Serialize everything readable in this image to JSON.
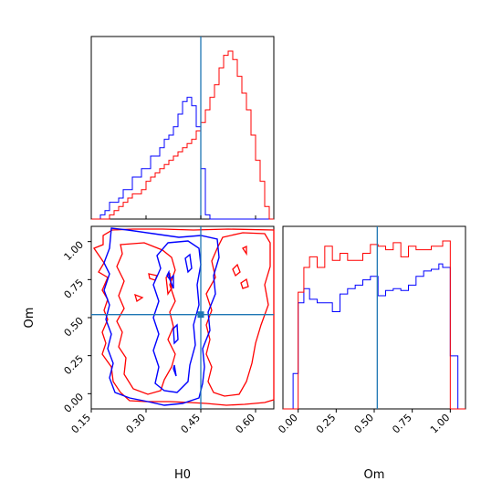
{
  "chart_data": {
    "type": "corner",
    "parameters": [
      "H0",
      "Om"
    ],
    "truth": {
      "H0": 0.45,
      "Om": 0.52
    },
    "colors": {
      "blue": "#0000ff",
      "red": "#ff0000",
      "truth": "#1f77b4"
    },
    "panels": [
      {
        "id": "hist-H0",
        "type": "histogram",
        "x_range": [
          0.15,
          0.65
        ],
        "bin_edges": [
          0.15,
          0.1625,
          0.175,
          0.1875,
          0.2,
          0.2125,
          0.225,
          0.2375,
          0.25,
          0.2625,
          0.275,
          0.2875,
          0.3,
          0.3125,
          0.325,
          0.3375,
          0.35,
          0.3625,
          0.375,
          0.3875,
          0.4,
          0.4125,
          0.425,
          0.4375,
          0.45,
          0.4625,
          0.475,
          0.4875,
          0.5,
          0.5125,
          0.525,
          0.5375,
          0.55,
          0.5625,
          0.575,
          0.5875,
          0.6,
          0.6125,
          0.625,
          0.6375,
          0.65
        ],
        "series": [
          {
            "name": "blue",
            "color": "#0000ff",
            "values": [
              0,
              0,
              1,
              2,
              4,
              4,
              5,
              7,
              7,
              10,
              10,
              12,
              12,
              15,
              15,
              17,
              19,
              20,
              22,
              25,
              28,
              29,
              27,
              22,
              12,
              1,
              0,
              0,
              0,
              0,
              0,
              0,
              0,
              0,
              0,
              0,
              0,
              0,
              0,
              0
            ]
          },
          {
            "name": "red",
            "color": "#ff0000",
            "values": [
              0,
              0,
              0,
              0,
              1,
              2,
              3,
              4,
              5,
              6,
              6,
              7,
              9,
              10,
              11,
              12,
              13,
              14,
              15,
              16,
              17,
              18,
              19,
              21,
              23,
              26,
              29,
              32,
              36,
              39,
              40,
              38,
              34,
              30,
              26,
              20,
              14,
              9,
              3,
              0
            ]
          }
        ]
      },
      {
        "id": "hist-Om",
        "type": "histogram",
        "x_range": [
          -0.1,
          1.1
        ],
        "x_ticks": [
          "0.00",
          "0.25",
          "0.50",
          "0.75",
          "1.00"
        ],
        "xlabel": "Om",
        "bin_edges": [
          -0.1,
          -0.0333,
          0.0,
          0.0375,
          0.075,
          0.125,
          0.175,
          0.225,
          0.275,
          0.325,
          0.375,
          0.425,
          0.475,
          0.525,
          0.575,
          0.625,
          0.675,
          0.725,
          0.775,
          0.825,
          0.875,
          0.925,
          0.95,
          1.0,
          1.05,
          1.1
        ],
        "series": [
          {
            "name": "blue",
            "color": "#0000ff",
            "values": [
              0,
              20,
              60,
              68,
              62,
              60,
              60,
              55,
              65,
              68,
              70,
              73,
              75,
              64,
              67,
              68,
              67,
              70,
              75,
              78,
              79,
              82,
              80,
              30,
              0
            ]
          },
          {
            "name": "red",
            "color": "#ff0000",
            "values": [
              0,
              0,
              66,
              80,
              86,
              80,
              92,
              84,
              88,
              84,
              84,
              88,
              93,
              92,
              90,
              94,
              86,
              92,
              90,
              90,
              92,
              92,
              95,
              0,
              0
            ]
          }
        ]
      },
      {
        "id": "contour-H0-Om",
        "type": "contour",
        "xlabel": "H0",
        "ylabel": "Om",
        "x_range": [
          0.15,
          0.65
        ],
        "y_range": [
          -0.1,
          1.1
        ],
        "x_ticks": [
          "0.15",
          "0.30",
          "0.45",
          "0.60"
        ],
        "y_ticks": [
          "0.00",
          "0.25",
          "0.50",
          "0.75",
          "1.00"
        ]
      }
    ]
  }
}
